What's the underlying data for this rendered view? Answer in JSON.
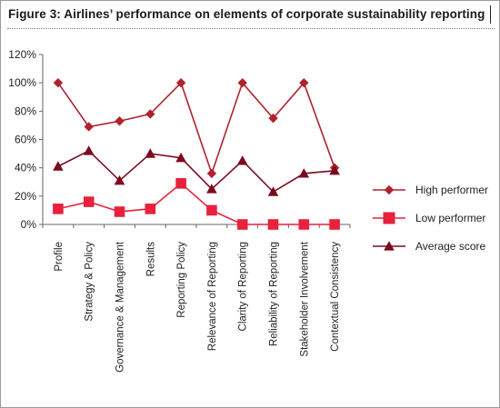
{
  "title": "Figure 3: Airlines’ performance on elements of corporate sustainability reporting",
  "chart_data": {
    "type": "line",
    "categories": [
      "Profile",
      "Strategy & Policy",
      "Governance & Management",
      "Results",
      "Reporting Policy",
      "Relevance of Reporting",
      "Clarity of Reporting",
      "Reliability of Reporting",
      "Stakeholder Involvement",
      "Contextual Consistency"
    ],
    "series": [
      {
        "name": "High performer",
        "values": [
          100,
          69,
          73,
          78,
          100,
          36,
          100,
          75,
          100,
          40
        ],
        "color": "#b0222e",
        "marker": "diamond"
      },
      {
        "name": "Low performer",
        "values": [
          11,
          16,
          9,
          11,
          29,
          10,
          0,
          0,
          0,
          0
        ],
        "color": "#e8213c",
        "marker": "square"
      },
      {
        "name": "Average score",
        "values": [
          41,
          52,
          31,
          50,
          47,
          25,
          45,
          23,
          36,
          38
        ],
        "color": "#7a0a1e",
        "marker": "triangle"
      }
    ],
    "yticks": [
      "0%",
      "20%",
      "40%",
      "60%",
      "80%",
      "100%",
      "120%"
    ],
    "ylim": [
      0,
      120
    ],
    "grid": false,
    "legend": "right"
  }
}
